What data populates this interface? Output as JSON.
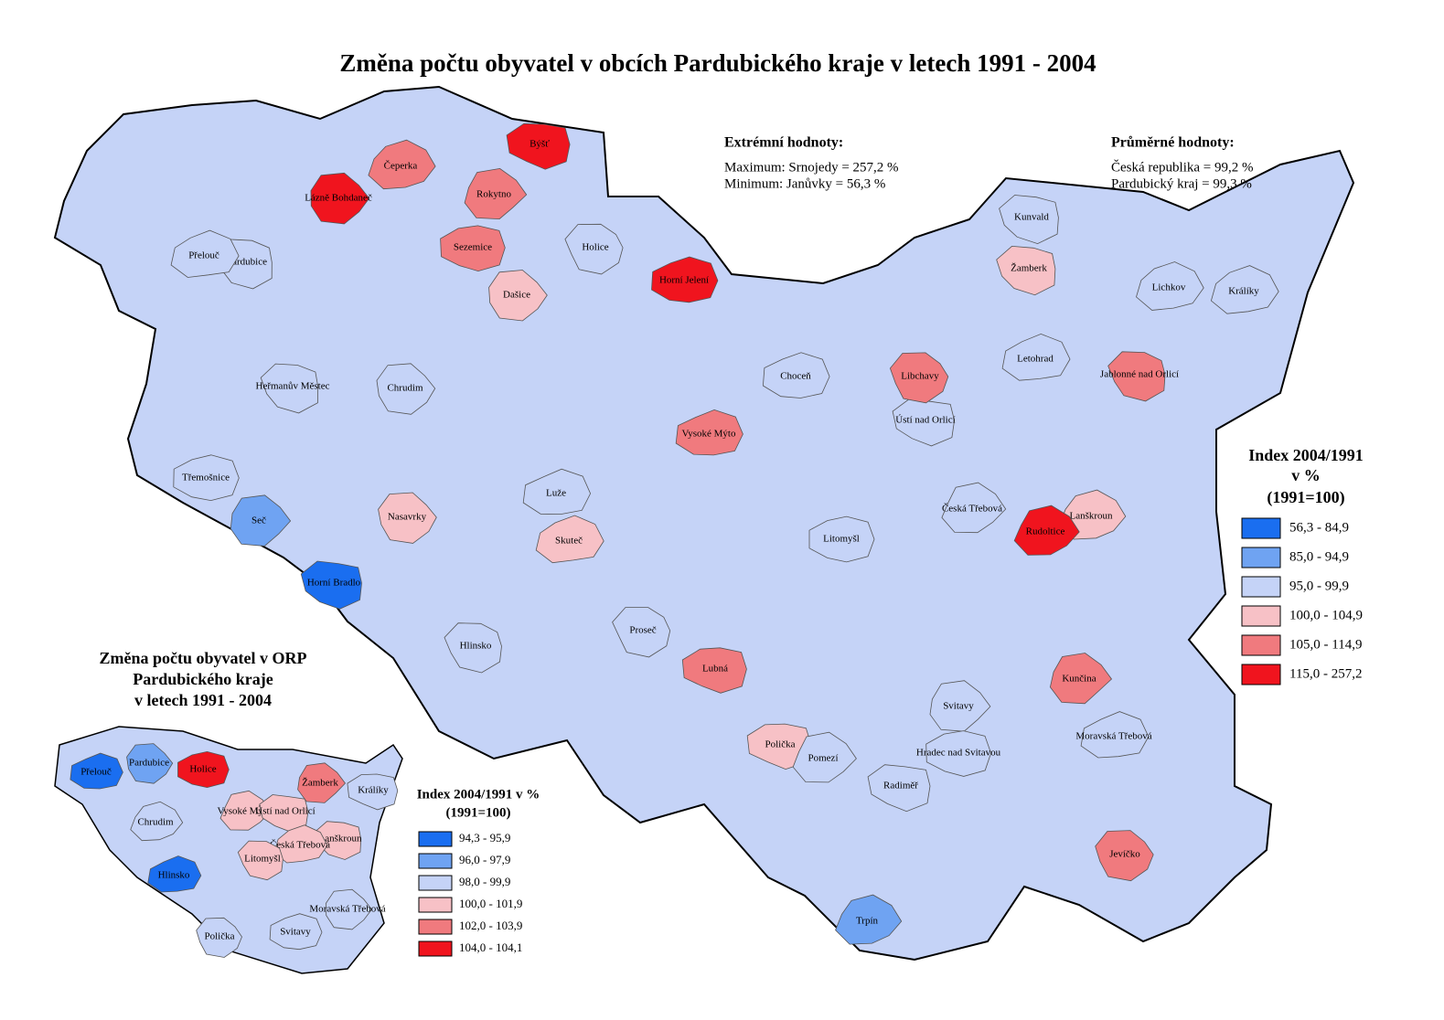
{
  "title": "Změna počtu obyvatel v obcích Pardubického kraje v letech 1991 - 2004",
  "extremes": {
    "heading": "Extrémní hodnoty:",
    "lines": [
      "Maximum: Srnojedy = 257,2 %",
      "Minimum: Janůvky = 56,3 %"
    ]
  },
  "averages": {
    "heading": "Průměrné hodnoty:",
    "lines": [
      "Česká republika = 99,2 %",
      "Pardubický kraj = 99,3 %"
    ]
  },
  "legend": {
    "title": [
      "Index 2004/1991",
      "v %",
      "(1991=100)"
    ],
    "classes": [
      {
        "label": "56,3 - 84,9",
        "color": "#1a6ef0"
      },
      {
        "label": "85,0 - 94,9",
        "color": "#6fa3f2"
      },
      {
        "label": "95,0 - 99,9",
        "color": "#c5d3f7"
      },
      {
        "label": "100,0 - 104,9",
        "color": "#f7c1c6"
      },
      {
        "label": "105,0 - 114,9",
        "color": "#f07a7e"
      },
      {
        "label": "115,0 - 257,2",
        "color": "#f0141e"
      }
    ]
  },
  "municipalities": [
    {
      "name": "Pardubice",
      "color": "#c5d3f7"
    },
    {
      "name": "Přelouč",
      "color": "#c5d3f7"
    },
    {
      "name": "Holice",
      "color": "#c5d3f7"
    },
    {
      "name": "Vysoké Mýto",
      "color": "#f07a7e"
    },
    {
      "name": "Chrudim",
      "color": "#c5d3f7"
    },
    {
      "name": "Litomyšl",
      "color": "#c5d3f7"
    },
    {
      "name": "Svitavy",
      "color": "#c5d3f7"
    },
    {
      "name": "Polička",
      "color": "#f7c1c6"
    },
    {
      "name": "Česká Třebová",
      "color": "#c5d3f7"
    },
    {
      "name": "Ústí nad Orlicí",
      "color": "#c5d3f7"
    },
    {
      "name": "Lanškroun",
      "color": "#f7c1c6"
    },
    {
      "name": "Žamberk",
      "color": "#f7c1c6"
    },
    {
      "name": "Králíky",
      "color": "#c5d3f7"
    },
    {
      "name": "Hlinsko",
      "color": "#c5d3f7"
    },
    {
      "name": "Moravská Třebová",
      "color": "#c5d3f7"
    },
    {
      "name": "Jevíčko",
      "color": "#f07a7e"
    },
    {
      "name": "Horní Jelení",
      "color": "#f0141e"
    },
    {
      "name": "Lázně Bohdaneč",
      "color": "#f0141e"
    },
    {
      "name": "Sezemice",
      "color": "#f07a7e"
    },
    {
      "name": "Rokytno",
      "color": "#f07a7e"
    },
    {
      "name": "Býšť",
      "color": "#f0141e"
    },
    {
      "name": "Rudoltice",
      "color": "#f0141e"
    },
    {
      "name": "Horní Bradlo",
      "color": "#1a6ef0"
    },
    {
      "name": "Čeperka",
      "color": "#f07a7e"
    },
    {
      "name": "Heřmanův Městec",
      "color": "#c5d3f7"
    },
    {
      "name": "Skuteč",
      "color": "#f7c1c6"
    },
    {
      "name": "Proseč",
      "color": "#c5d3f7"
    },
    {
      "name": "Luže",
      "color": "#c5d3f7"
    },
    {
      "name": "Nasavrky",
      "color": "#f7c1c6"
    },
    {
      "name": "Třemošnice",
      "color": "#c5d3f7"
    },
    {
      "name": "Seč",
      "color": "#6fa3f2"
    },
    {
      "name": "Lubná",
      "color": "#f07a7e"
    },
    {
      "name": "Pomezí",
      "color": "#c5d3f7"
    },
    {
      "name": "Radiměř",
      "color": "#c5d3f7"
    },
    {
      "name": "Trpín",
      "color": "#6fa3f2"
    },
    {
      "name": "Kunvald",
      "color": "#c5d3f7"
    },
    {
      "name": "Lichkov",
      "color": "#c5d3f7"
    },
    {
      "name": "Jablonné nad Orlicí",
      "color": "#f07a7e"
    },
    {
      "name": "Letohrad",
      "color": "#c5d3f7"
    },
    {
      "name": "Libchavy",
      "color": "#f07a7e"
    },
    {
      "name": "Choceň",
      "color": "#c5d3f7"
    },
    {
      "name": "Dašice",
      "color": "#f7c1c6"
    },
    {
      "name": "Hradec nad Svitavou",
      "color": "#c5d3f7"
    },
    {
      "name": "Kunčina",
      "color": "#f07a7e"
    }
  ],
  "inset": {
    "title": [
      "Změna počtu obyvatel v ORP",
      "Pardubického kraje",
      "v letech 1991 - 2004"
    ],
    "legend_title": [
      "Index 2004/1991 v %",
      "(1991=100)"
    ],
    "classes": [
      {
        "label": "94,3 - 95,9",
        "color": "#1a6ef0"
      },
      {
        "label": "96,0 - 97,9",
        "color": "#6fa3f2"
      },
      {
        "label": "98,0 - 99,9",
        "color": "#c5d3f7"
      },
      {
        "label": "100,0 - 101,9",
        "color": "#f7c1c6"
      },
      {
        "label": "102,0 - 103,9",
        "color": "#f07a7e"
      },
      {
        "label": "104,0 - 104,1",
        "color": "#f0141e"
      }
    ],
    "regions": [
      {
        "name": "Přelouč",
        "color": "#1a6ef0"
      },
      {
        "name": "Pardubice",
        "color": "#6fa3f2"
      },
      {
        "name": "Holice",
        "color": "#f0141e"
      },
      {
        "name": "Žamberk",
        "color": "#f07a7e"
      },
      {
        "name": "Králíky",
        "color": "#c5d3f7"
      },
      {
        "name": "Vysoké Mýto",
        "color": "#f7c1c6"
      },
      {
        "name": "Ústí nad Orlicí",
        "color": "#f7c1c6"
      },
      {
        "name": "Chrudim",
        "color": "#c5d3f7"
      },
      {
        "name": "Lanškroun",
        "color": "#f7c1c6"
      },
      {
        "name": "Česká Třebová",
        "color": "#f7c1c6"
      },
      {
        "name": "Litomyšl",
        "color": "#f7c1c6"
      },
      {
        "name": "Hlinsko",
        "color": "#1a6ef0"
      },
      {
        "name": "Polička",
        "color": "#c5d3f7"
      },
      {
        "name": "Svitavy",
        "color": "#c5d3f7"
      },
      {
        "name": "Moravská Třebová",
        "color": "#c5d3f7"
      }
    ]
  }
}
